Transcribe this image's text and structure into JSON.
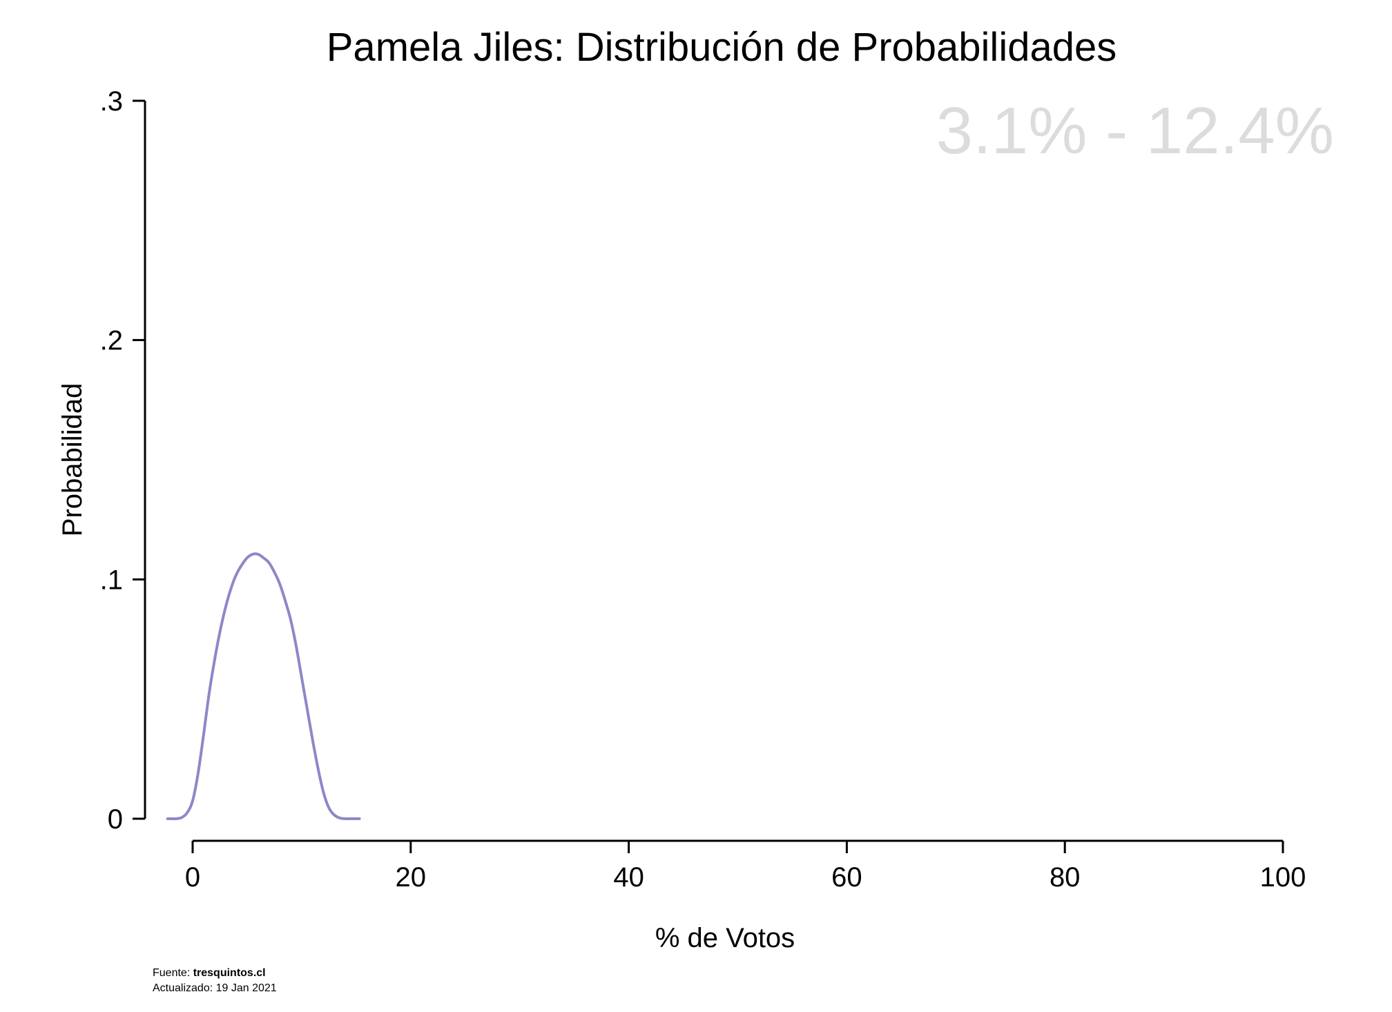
{
  "chart_data": {
    "type": "area",
    "title": "Pamela Jiles: Distribución de Probabilidades",
    "xlabel": "% de Votos",
    "ylabel": "Probabilidad",
    "xlim": [
      0,
      100
    ],
    "ylim": [
      0,
      0.3
    ],
    "x_ticks": [
      {
        "value": 0,
        "label": "0"
      },
      {
        "value": 20,
        "label": "20"
      },
      {
        "value": 40,
        "label": "40"
      },
      {
        "value": 60,
        "label": "60"
      },
      {
        "value": 80,
        "label": "80"
      },
      {
        "value": 100,
        "label": "100"
      }
    ],
    "y_ticks": [
      {
        "value": 0,
        "label": "0"
      },
      {
        "value": 0.1,
        "label": ".1"
      },
      {
        "value": 0.2,
        "label": ".2"
      },
      {
        "value": 0.3,
        "label": ".3"
      }
    ],
    "range_label": "3.1% - 12.4%",
    "grid": false,
    "series": [
      {
        "color": "#8c88c8",
        "x": [
          -2.3,
          -1.5,
          -1.0,
          -0.5,
          0.0,
          0.5,
          1.0,
          1.5,
          2.0,
          2.5,
          3.0,
          3.5,
          4.0,
          4.5,
          5.0,
          5.5,
          6.0,
          6.5,
          7.0,
          7.5,
          8.0,
          8.5,
          9.0,
          9.5,
          10.0,
          10.5,
          11.0,
          11.5,
          12.0,
          12.5,
          13.0,
          13.5,
          14.0,
          14.5,
          15.3
        ],
        "y": [
          0,
          0,
          0.0005,
          0.0025,
          0.0075,
          0.019,
          0.035,
          0.052,
          0.066,
          0.078,
          0.088,
          0.096,
          0.102,
          0.106,
          0.109,
          0.1105,
          0.1105,
          0.109,
          0.107,
          0.103,
          0.098,
          0.091,
          0.083,
          0.072,
          0.059,
          0.046,
          0.033,
          0.021,
          0.011,
          0.0045,
          0.0015,
          0.0003,
          0,
          0,
          0
        ]
      }
    ]
  },
  "footer": {
    "source_prefix": "Fuente: ",
    "source_name": "tresquintos.cl",
    "updated": "Actualizado: 19 Jan 2021"
  }
}
